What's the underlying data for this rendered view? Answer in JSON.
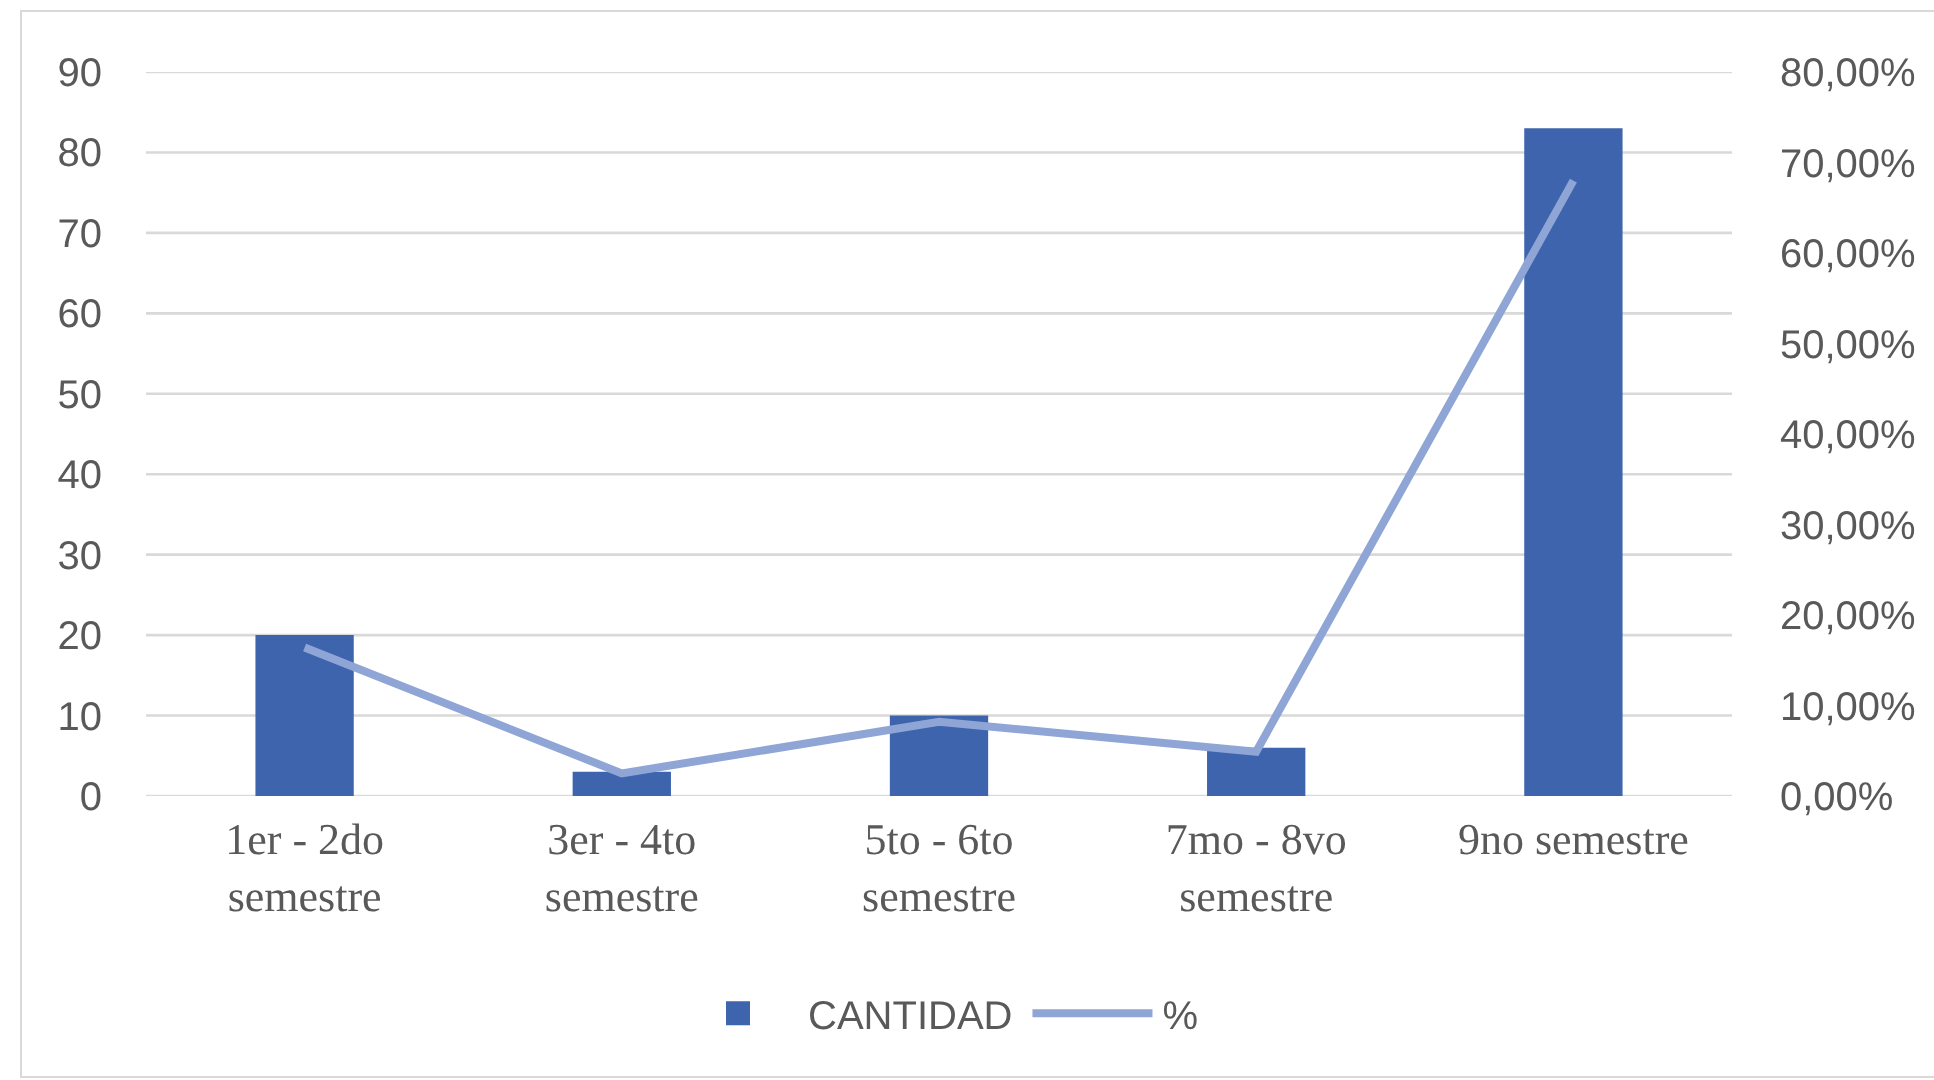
{
  "chart_data": {
    "type": "bar",
    "categories": [
      "1er - 2do semestre",
      "3er - 4to semestre",
      "5to - 6to semestre",
      "7mo - 8vo semestre",
      "9no semestre"
    ],
    "series": [
      {
        "name": "CANTIDAD",
        "color": "#3d64ad",
        "values": [
          20,
          3,
          10,
          6,
          83
        ]
      },
      {
        "name": "%",
        "type": "line",
        "axis": "y2",
        "color": "#8fa5d6",
        "values": [
          16.4,
          2.5,
          8.2,
          4.9,
          68.0
        ]
      }
    ],
    "ylim": [
      0,
      90
    ],
    "yticks": [
      0,
      10,
      20,
      30,
      40,
      50,
      60,
      70,
      80,
      90
    ],
    "y2lim": [
      0,
      80
    ],
    "y2ticks": [
      {
        "value": 0,
        "label": "0,00%"
      },
      {
        "value": 10,
        "label": "10,00%"
      },
      {
        "value": 20,
        "label": "20,00%"
      },
      {
        "value": 30,
        "label": "30,00%"
      },
      {
        "value": 40,
        "label": "40,00%"
      },
      {
        "value": 50,
        "label": "50,00%"
      },
      {
        "value": 60,
        "label": "60,00%"
      },
      {
        "value": 70,
        "label": "70,00%"
      },
      {
        "value": 80,
        "label": "80,00%"
      }
    ],
    "grid": "y",
    "legend": "bottom",
    "marker": "none",
    "line_style": "solid"
  }
}
